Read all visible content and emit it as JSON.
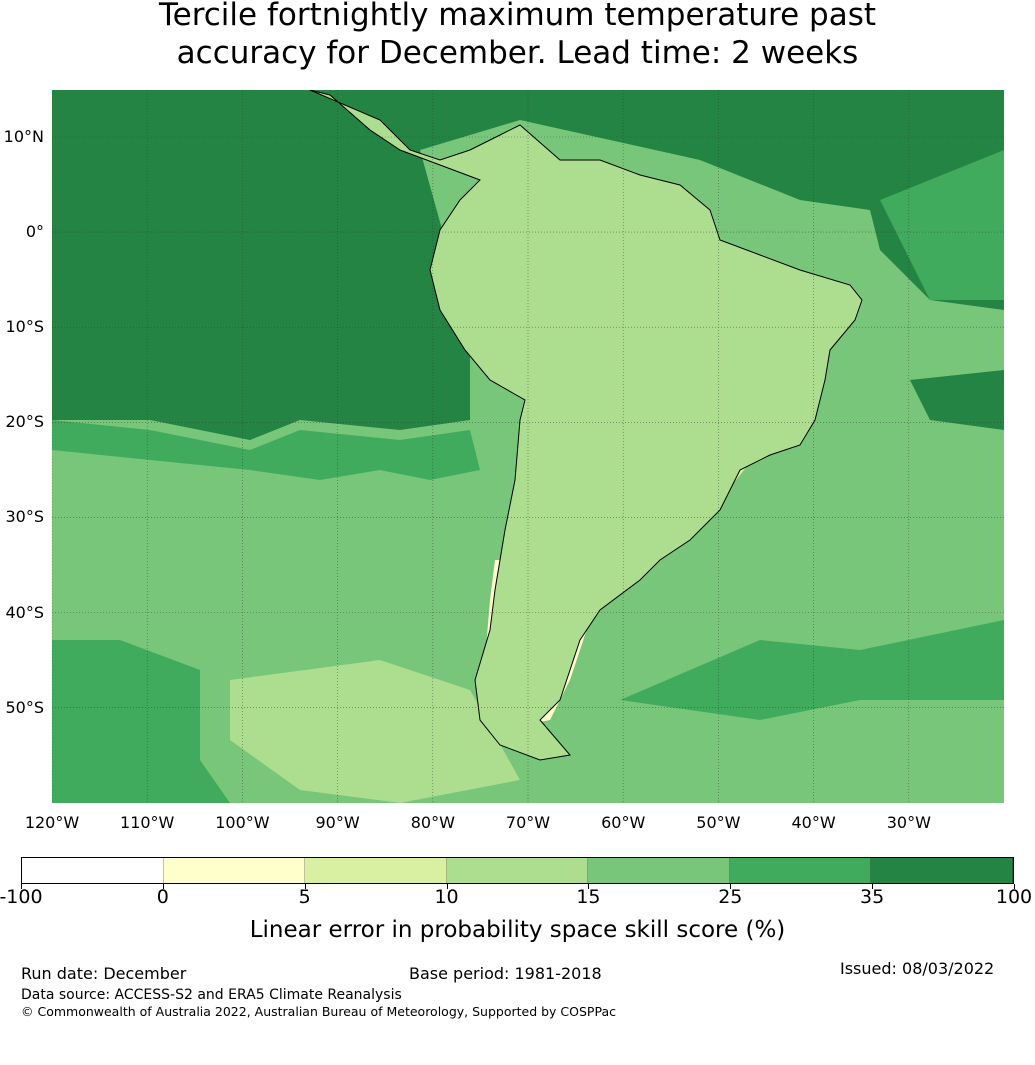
{
  "title_line1": "Tercile fortnightly maximum temperature past",
  "title_line2": "accuracy for December. Lead time: 2 weeks",
  "map": {
    "region": "South America",
    "lat_labels": [
      "10°N",
      "0°",
      "10°S",
      "20°S",
      "30°S",
      "40°S",
      "50°S"
    ],
    "lon_labels": [
      "120°W",
      "110°W",
      "100°W",
      "90°W",
      "80°W",
      "70°W",
      "60°W",
      "50°W",
      "40°W",
      "30°W"
    ]
  },
  "colorbar": {
    "label": "Linear error in probability space skill score (%)",
    "ticks": [
      "-100",
      "0",
      "5",
      "10",
      "15",
      "25",
      "35",
      "100"
    ],
    "colors": [
      "#ffffff",
      "#ffffcc",
      "#d9f0a3",
      "#addd8e",
      "#78c679",
      "#41ab5d",
      "#238443"
    ]
  },
  "footer": {
    "run_date": "Run date: December",
    "base_period": "Base period: 1981-2018",
    "issued": "Issued: 08/03/2022",
    "data_source": "Data source: ACCESS-S2 and ERA5 Climate Reanalysis",
    "copyright": "© Commonwealth of Australia 2022, Australian Bureau of Meteorology, Supported by COSPPac"
  }
}
